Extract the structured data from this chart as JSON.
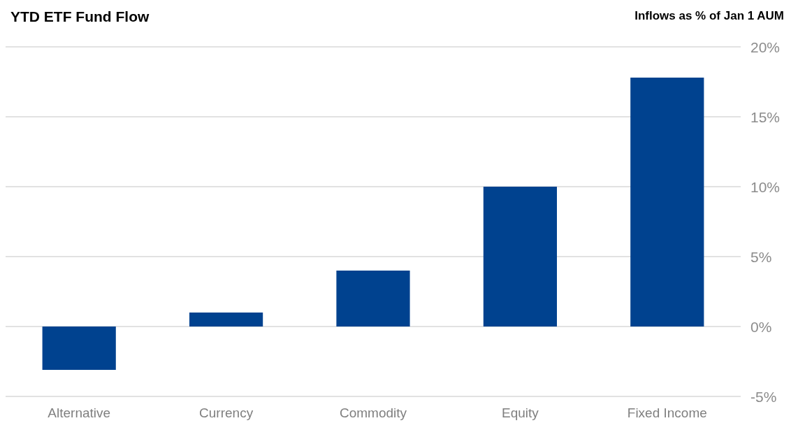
{
  "chart_data": {
    "type": "bar",
    "title": "YTD ETF Fund Flow",
    "ylabel": "Inflows as % of Jan 1 AUM",
    "categories": [
      "Alternative",
      "Currency",
      "Commodity",
      "Equity",
      "Fixed Income"
    ],
    "values": [
      -3.1,
      1.0,
      4.0,
      10.0,
      17.8
    ],
    "color": "#00428f",
    "ylim": [
      -5,
      20
    ],
    "yticks": [
      {
        "value": -5,
        "label": "-5%"
      },
      {
        "value": 0,
        "label": "0%"
      },
      {
        "value": 5,
        "label": "5%"
      },
      {
        "value": 10,
        "label": "10%"
      },
      {
        "value": 15,
        "label": "15%"
      },
      {
        "value": 20,
        "label": "20%"
      }
    ],
    "grid": "y"
  }
}
